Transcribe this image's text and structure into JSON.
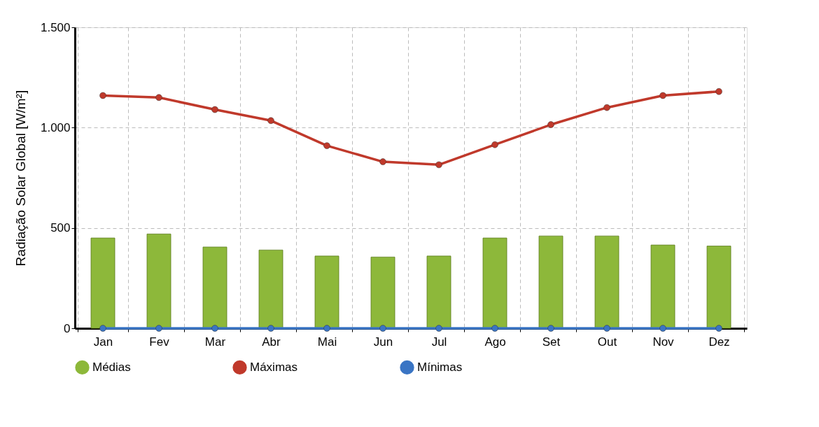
{
  "chart_data": {
    "type": "bar",
    "ylabel": "Radiação Solar Global [W/m²]",
    "categories": [
      "Jan",
      "Fev",
      "Mar",
      "Abr",
      "Mai",
      "Jun",
      "Jul",
      "Ago",
      "Set",
      "Out",
      "Nov",
      "Dez"
    ],
    "series": [
      {
        "name": "Médias",
        "color": "#8db83a",
        "values": [
          450,
          470,
          405,
          390,
          360,
          355,
          360,
          450,
          460,
          460,
          415,
          410
        ]
      },
      {
        "name": "Máximas",
        "type": "line",
        "color": "#c0392b",
        "values": [
          1160,
          1150,
          1090,
          1035,
          910,
          830,
          815,
          915,
          1015,
          1100,
          1160,
          1180
        ]
      },
      {
        "name": "Mínimas",
        "type": "line",
        "color": "#3a75c4",
        "values": [
          0,
          0,
          0,
          0,
          0,
          0,
          0,
          0,
          0,
          0,
          0,
          0
        ]
      }
    ],
    "ylim": [
      0,
      1500
    ],
    "yticks": [
      0,
      500,
      {
        "value": 1000,
        "label": "1.000"
      },
      {
        "value": 1500,
        "label": "1.500"
      }
    ],
    "grid": true,
    "legend": "bottom",
    "marker": "circle",
    "line_style": "solid"
  }
}
